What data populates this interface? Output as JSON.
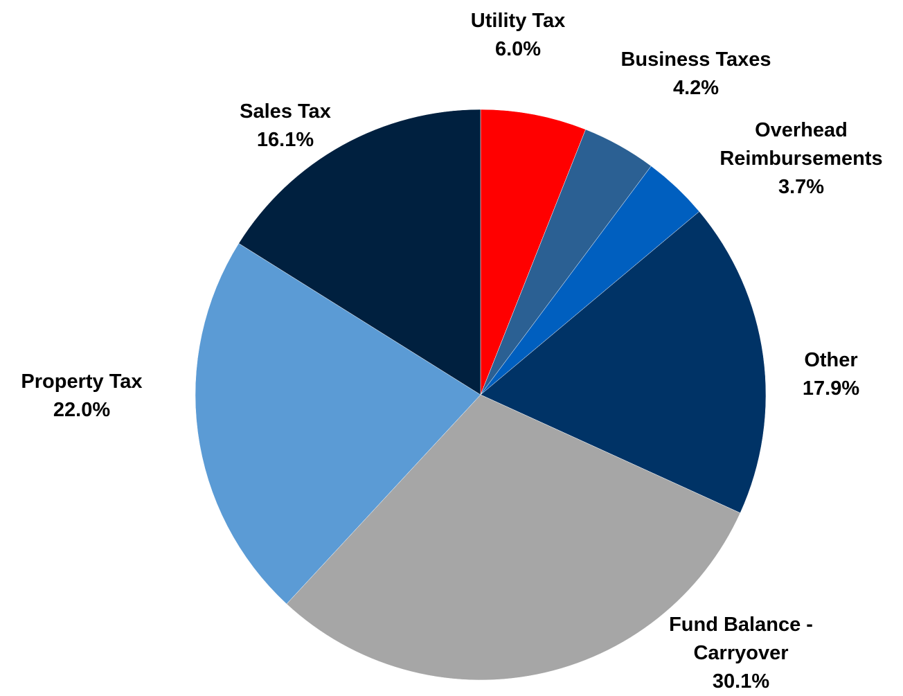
{
  "chart_data": {
    "type": "pie",
    "categories": [
      "Utility Tax",
      "Business Taxes",
      "Overhead Reimbursements",
      "Other",
      "Fund Balance - Carryover",
      "Property Tax",
      "Sales Tax"
    ],
    "values": [
      6.0,
      4.2,
      3.7,
      17.9,
      30.1,
      22.0,
      16.1
    ],
    "value_labels": [
      "6.0%",
      "4.2%",
      "3.7%",
      "17.9%",
      "30.1%",
      "22.0%",
      "16.1%"
    ],
    "colors": [
      "#ff0000",
      "#2b6093",
      "#005fbf",
      "#003366",
      "#a6a6a6",
      "#5b9bd5",
      "#00203f"
    ]
  }
}
